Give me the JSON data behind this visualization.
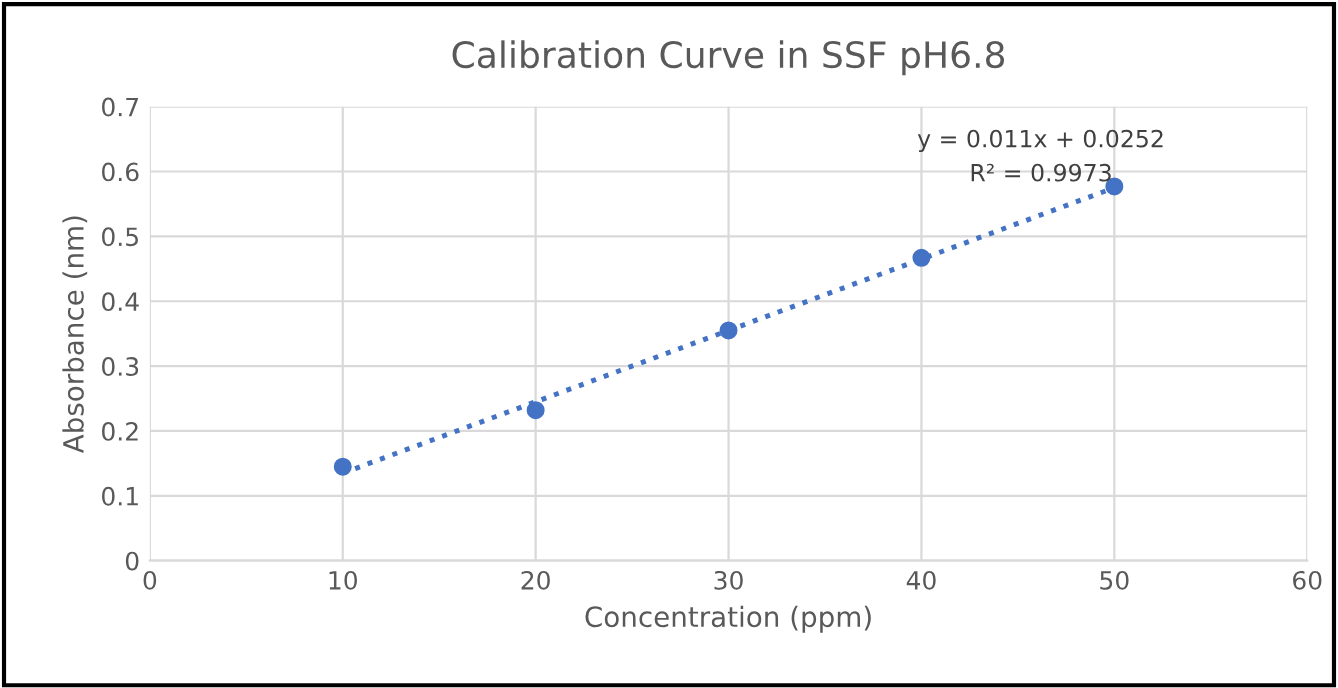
{
  "chart_data": {
    "type": "scatter",
    "title": "Calibration Curve in SSF pH6.8",
    "xlabel": "Concentration (ppm)",
    "ylabel": "Absorbance (nm)",
    "x": [
      10,
      20,
      30,
      40,
      50
    ],
    "series": [
      {
        "color": "#4472c4",
        "values": [
          0.145,
          0.232,
          0.355,
          0.467,
          0.577
        ],
        "marker": "circle"
      },
      {
        "type": "line",
        "color": "#4472c4",
        "x": [
          10,
          50
        ],
        "values": [
          0.135,
          0.575
        ],
        "line_style": "dotted",
        "marker": "none"
      }
    ],
    "annotations": [
      "y = 0.011x + 0.0252",
      "R² = 0.9973"
    ],
    "xlim": [
      0,
      60
    ],
    "xticks": [
      0,
      10,
      20,
      30,
      40,
      50,
      60
    ],
    "ylim": [
      0,
      0.7
    ],
    "yticks": [
      0,
      0.1,
      0.2,
      0.3,
      0.4,
      0.5,
      0.6,
      0.7
    ],
    "grid": true,
    "legend": false
  }
}
